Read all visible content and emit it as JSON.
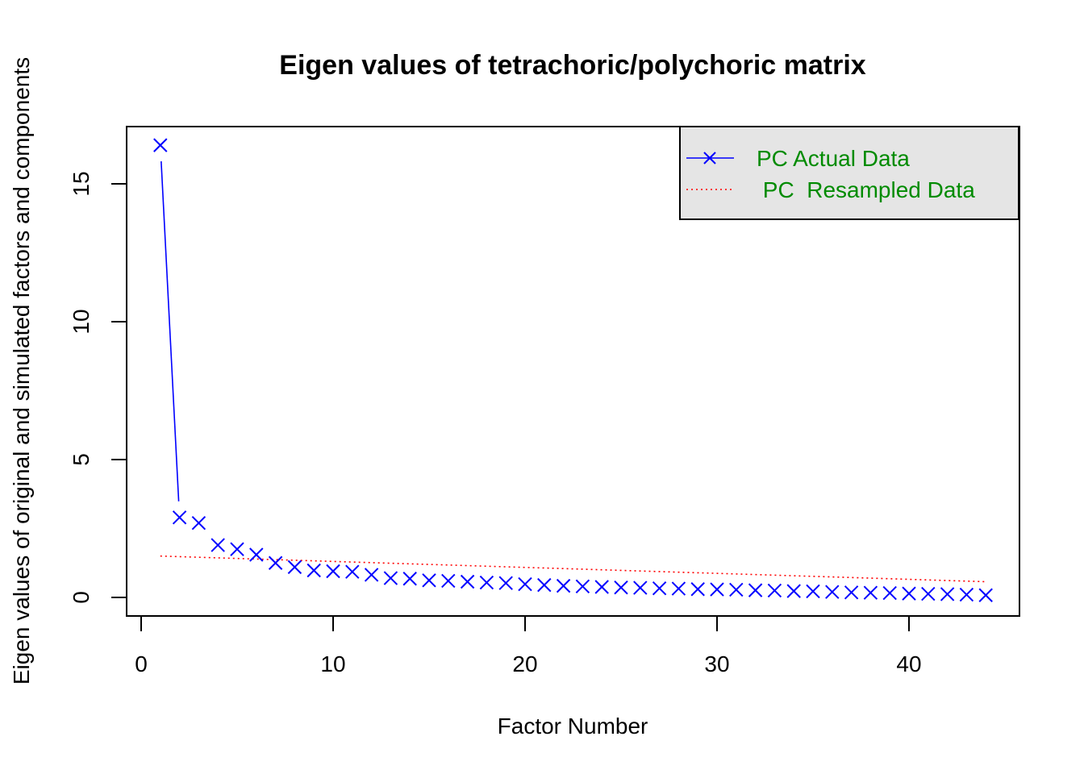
{
  "chart_data": {
    "type": "line",
    "title": "Eigen values of tetrachoric/polychoric matrix",
    "xlabel": "Factor Number",
    "ylabel": "Eigen values of original  and simulated factors and components",
    "xlim": [
      0,
      45
    ],
    "ylim": [
      0,
      17
    ],
    "x_ticks": [
      0,
      10,
      20,
      30,
      40
    ],
    "y_ticks": [
      0,
      5,
      10,
      15
    ],
    "legend": {
      "position": "top-right",
      "background": "#e5e5e5",
      "entries": [
        {
          "label": "PC  Actual Data",
          "color": "#0000ff",
          "style": "line-x"
        },
        {
          "label": " PC  Resampled Data",
          "color": "#ff0000",
          "style": "dotted"
        }
      ]
    },
    "series": [
      {
        "name": "PC  Actual Data",
        "color": "#0000ff",
        "x": [
          1,
          2,
          3,
          4,
          5,
          6,
          7,
          8,
          9,
          10,
          11,
          12,
          13,
          14,
          15,
          16,
          17,
          18,
          19,
          20,
          21,
          22,
          23,
          24,
          25,
          26,
          27,
          28,
          29,
          30,
          31,
          32,
          33,
          34,
          35,
          36,
          37,
          38,
          39,
          40,
          41,
          42,
          43,
          44
        ],
        "values": [
          16.4,
          2.9,
          2.7,
          1.9,
          1.75,
          1.55,
          1.25,
          1.1,
          0.98,
          0.95,
          0.93,
          0.82,
          0.7,
          0.68,
          0.62,
          0.6,
          0.57,
          0.54,
          0.52,
          0.48,
          0.45,
          0.42,
          0.4,
          0.38,
          0.36,
          0.35,
          0.33,
          0.32,
          0.3,
          0.29,
          0.28,
          0.26,
          0.25,
          0.23,
          0.22,
          0.2,
          0.18,
          0.17,
          0.16,
          0.14,
          0.13,
          0.12,
          0.1,
          0.08
        ]
      },
      {
        "name": " PC  Resampled Data",
        "color": "#ff0000",
        "x": [
          1,
          44
        ],
        "values": [
          1.5,
          0.57
        ]
      }
    ]
  }
}
